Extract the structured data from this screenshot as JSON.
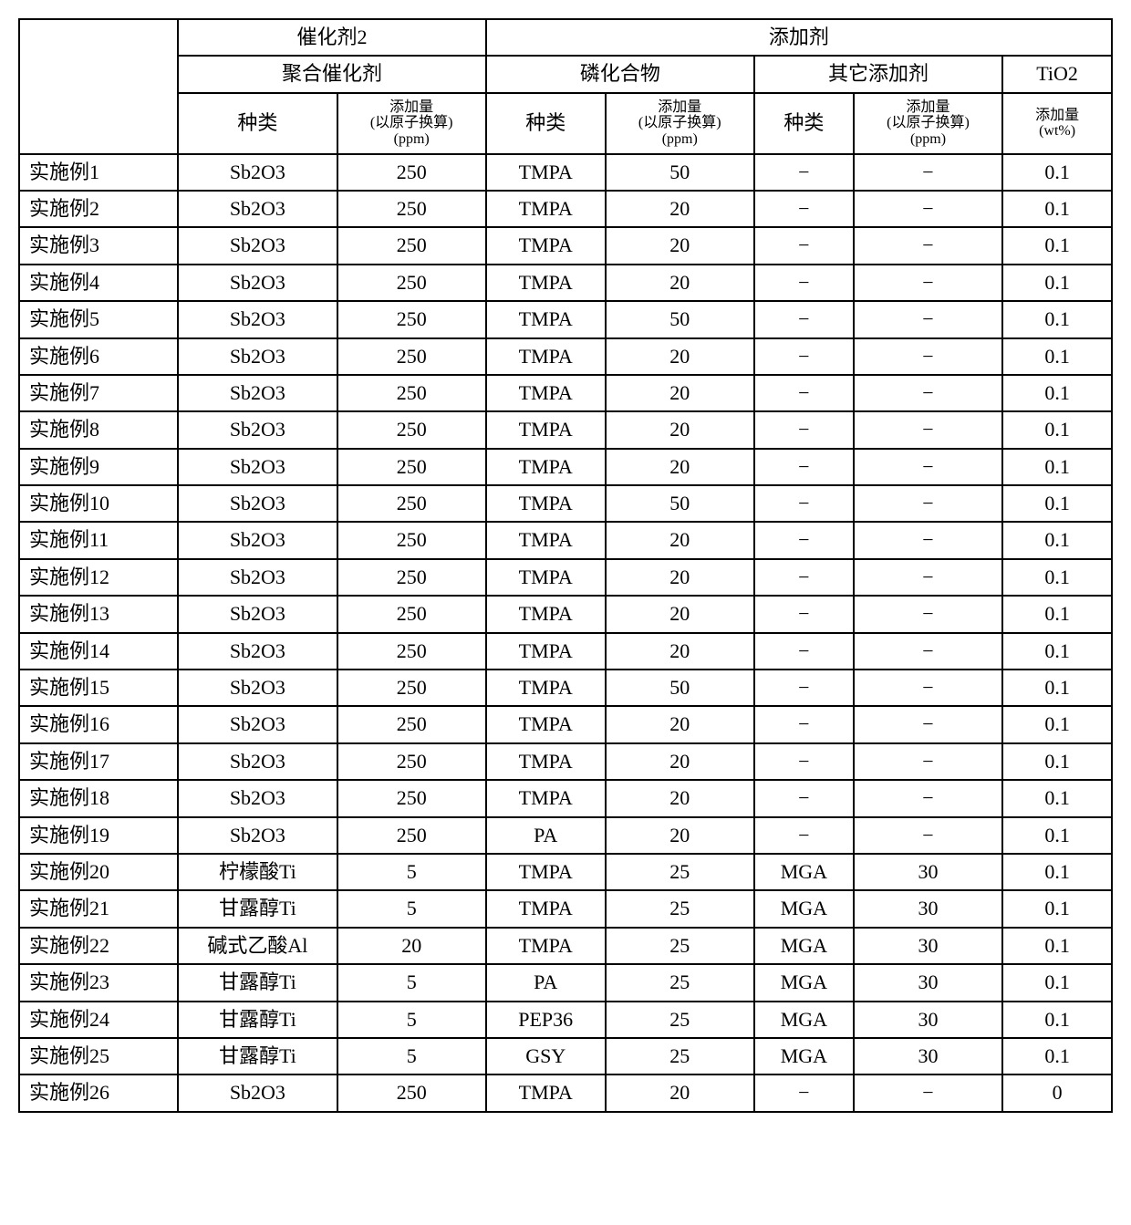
{
  "header": {
    "cat2": "催化剂2",
    "add": "添加剂",
    "poly": "聚合催化剂",
    "phos": "磷化合物",
    "other": "其它添加剂",
    "tio2": "TiO2",
    "type": "种类",
    "amount_atom": "添加量\n(以原子换算)\n(ppm)",
    "amount_wt": "添加量\n(wt%)"
  },
  "rows": [
    {
      "label": "实施例1",
      "c1": "Sb2O3",
      "c2": "250",
      "c3": "TMPA",
      "c4": "50",
      "c5": "−",
      "c6": "−",
      "c7": "0.1"
    },
    {
      "label": "实施例2",
      "c1": "Sb2O3",
      "c2": "250",
      "c3": "TMPA",
      "c4": "20",
      "c5": "−",
      "c6": "−",
      "c7": "0.1"
    },
    {
      "label": "实施例3",
      "c1": "Sb2O3",
      "c2": "250",
      "c3": "TMPA",
      "c4": "20",
      "c5": "−",
      "c6": "−",
      "c7": "0.1"
    },
    {
      "label": "实施例4",
      "c1": "Sb2O3",
      "c2": "250",
      "c3": "TMPA",
      "c4": "20",
      "c5": "−",
      "c6": "−",
      "c7": "0.1"
    },
    {
      "label": "实施例5",
      "c1": "Sb2O3",
      "c2": "250",
      "c3": "TMPA",
      "c4": "50",
      "c5": "−",
      "c6": "−",
      "c7": "0.1"
    },
    {
      "label": "实施例6",
      "c1": "Sb2O3",
      "c2": "250",
      "c3": "TMPA",
      "c4": "20",
      "c5": "−",
      "c6": "−",
      "c7": "0.1"
    },
    {
      "label": "实施例7",
      "c1": "Sb2O3",
      "c2": "250",
      "c3": "TMPA",
      "c4": "20",
      "c5": "−",
      "c6": "−",
      "c7": "0.1"
    },
    {
      "label": "实施例8",
      "c1": "Sb2O3",
      "c2": "250",
      "c3": "TMPA",
      "c4": "20",
      "c5": "−",
      "c6": "−",
      "c7": "0.1"
    },
    {
      "label": "实施例9",
      "c1": "Sb2O3",
      "c2": "250",
      "c3": "TMPA",
      "c4": "20",
      "c5": "−",
      "c6": "−",
      "c7": "0.1"
    },
    {
      "label": "实施例10",
      "c1": "Sb2O3",
      "c2": "250",
      "c3": "TMPA",
      "c4": "50",
      "c5": "−",
      "c6": "−",
      "c7": "0.1"
    },
    {
      "label": "实施例11",
      "c1": "Sb2O3",
      "c2": "250",
      "c3": "TMPA",
      "c4": "20",
      "c5": "−",
      "c6": "−",
      "c7": "0.1"
    },
    {
      "label": "实施例12",
      "c1": "Sb2O3",
      "c2": "250",
      "c3": "TMPA",
      "c4": "20",
      "c5": "−",
      "c6": "−",
      "c7": "0.1"
    },
    {
      "label": "实施例13",
      "c1": "Sb2O3",
      "c2": "250",
      "c3": "TMPA",
      "c4": "20",
      "c5": "−",
      "c6": "−",
      "c7": "0.1"
    },
    {
      "label": "实施例14",
      "c1": "Sb2O3",
      "c2": "250",
      "c3": "TMPA",
      "c4": "20",
      "c5": "−",
      "c6": "−",
      "c7": "0.1"
    },
    {
      "label": "实施例15",
      "c1": "Sb2O3",
      "c2": "250",
      "c3": "TMPA",
      "c4": "50",
      "c5": "−",
      "c6": "−",
      "c7": "0.1"
    },
    {
      "label": "实施例16",
      "c1": "Sb2O3",
      "c2": "250",
      "c3": "TMPA",
      "c4": "20",
      "c5": "−",
      "c6": "−",
      "c7": "0.1"
    },
    {
      "label": "实施例17",
      "c1": "Sb2O3",
      "c2": "250",
      "c3": "TMPA",
      "c4": "20",
      "c5": "−",
      "c6": "−",
      "c7": "0.1"
    },
    {
      "label": "实施例18",
      "c1": "Sb2O3",
      "c2": "250",
      "c3": "TMPA",
      "c4": "20",
      "c5": "−",
      "c6": "−",
      "c7": "0.1"
    },
    {
      "label": "实施例19",
      "c1": "Sb2O3",
      "c2": "250",
      "c3": "PA",
      "c4": "20",
      "c5": "−",
      "c6": "−",
      "c7": "0.1"
    },
    {
      "label": "实施例20",
      "c1": "柠檬酸Ti",
      "c2": "5",
      "c3": "TMPA",
      "c4": "25",
      "c5": "MGA",
      "c6": "30",
      "c7": "0.1"
    },
    {
      "label": "实施例21",
      "c1": "甘露醇Ti",
      "c2": "5",
      "c3": "TMPA",
      "c4": "25",
      "c5": "MGA",
      "c6": "30",
      "c7": "0.1"
    },
    {
      "label": "实施例22",
      "c1": "碱式乙酸Al",
      "c2": "20",
      "c3": "TMPA",
      "c4": "25",
      "c5": "MGA",
      "c6": "30",
      "c7": "0.1"
    },
    {
      "label": "实施例23",
      "c1": "甘露醇Ti",
      "c2": "5",
      "c3": "PA",
      "c4": "25",
      "c5": "MGA",
      "c6": "30",
      "c7": "0.1"
    },
    {
      "label": "实施例24",
      "c1": "甘露醇Ti",
      "c2": "5",
      "c3": "PEP36",
      "c4": "25",
      "c5": "MGA",
      "c6": "30",
      "c7": "0.1"
    },
    {
      "label": "实施例25",
      "c1": "甘露醇Ti",
      "c2": "5",
      "c3": "GSY",
      "c4": "25",
      "c5": "MGA",
      "c6": "30",
      "c7": "0.1"
    },
    {
      "label": "实施例26",
      "c1": "Sb2O3",
      "c2": "250",
      "c3": "TMPA",
      "c4": "20",
      "c5": "−",
      "c6": "−",
      "c7": "0"
    }
  ],
  "style": {
    "border_color": "#000000",
    "bg_color": "#ffffff",
    "font_size_cell": 22,
    "font_size_sub": 16
  }
}
